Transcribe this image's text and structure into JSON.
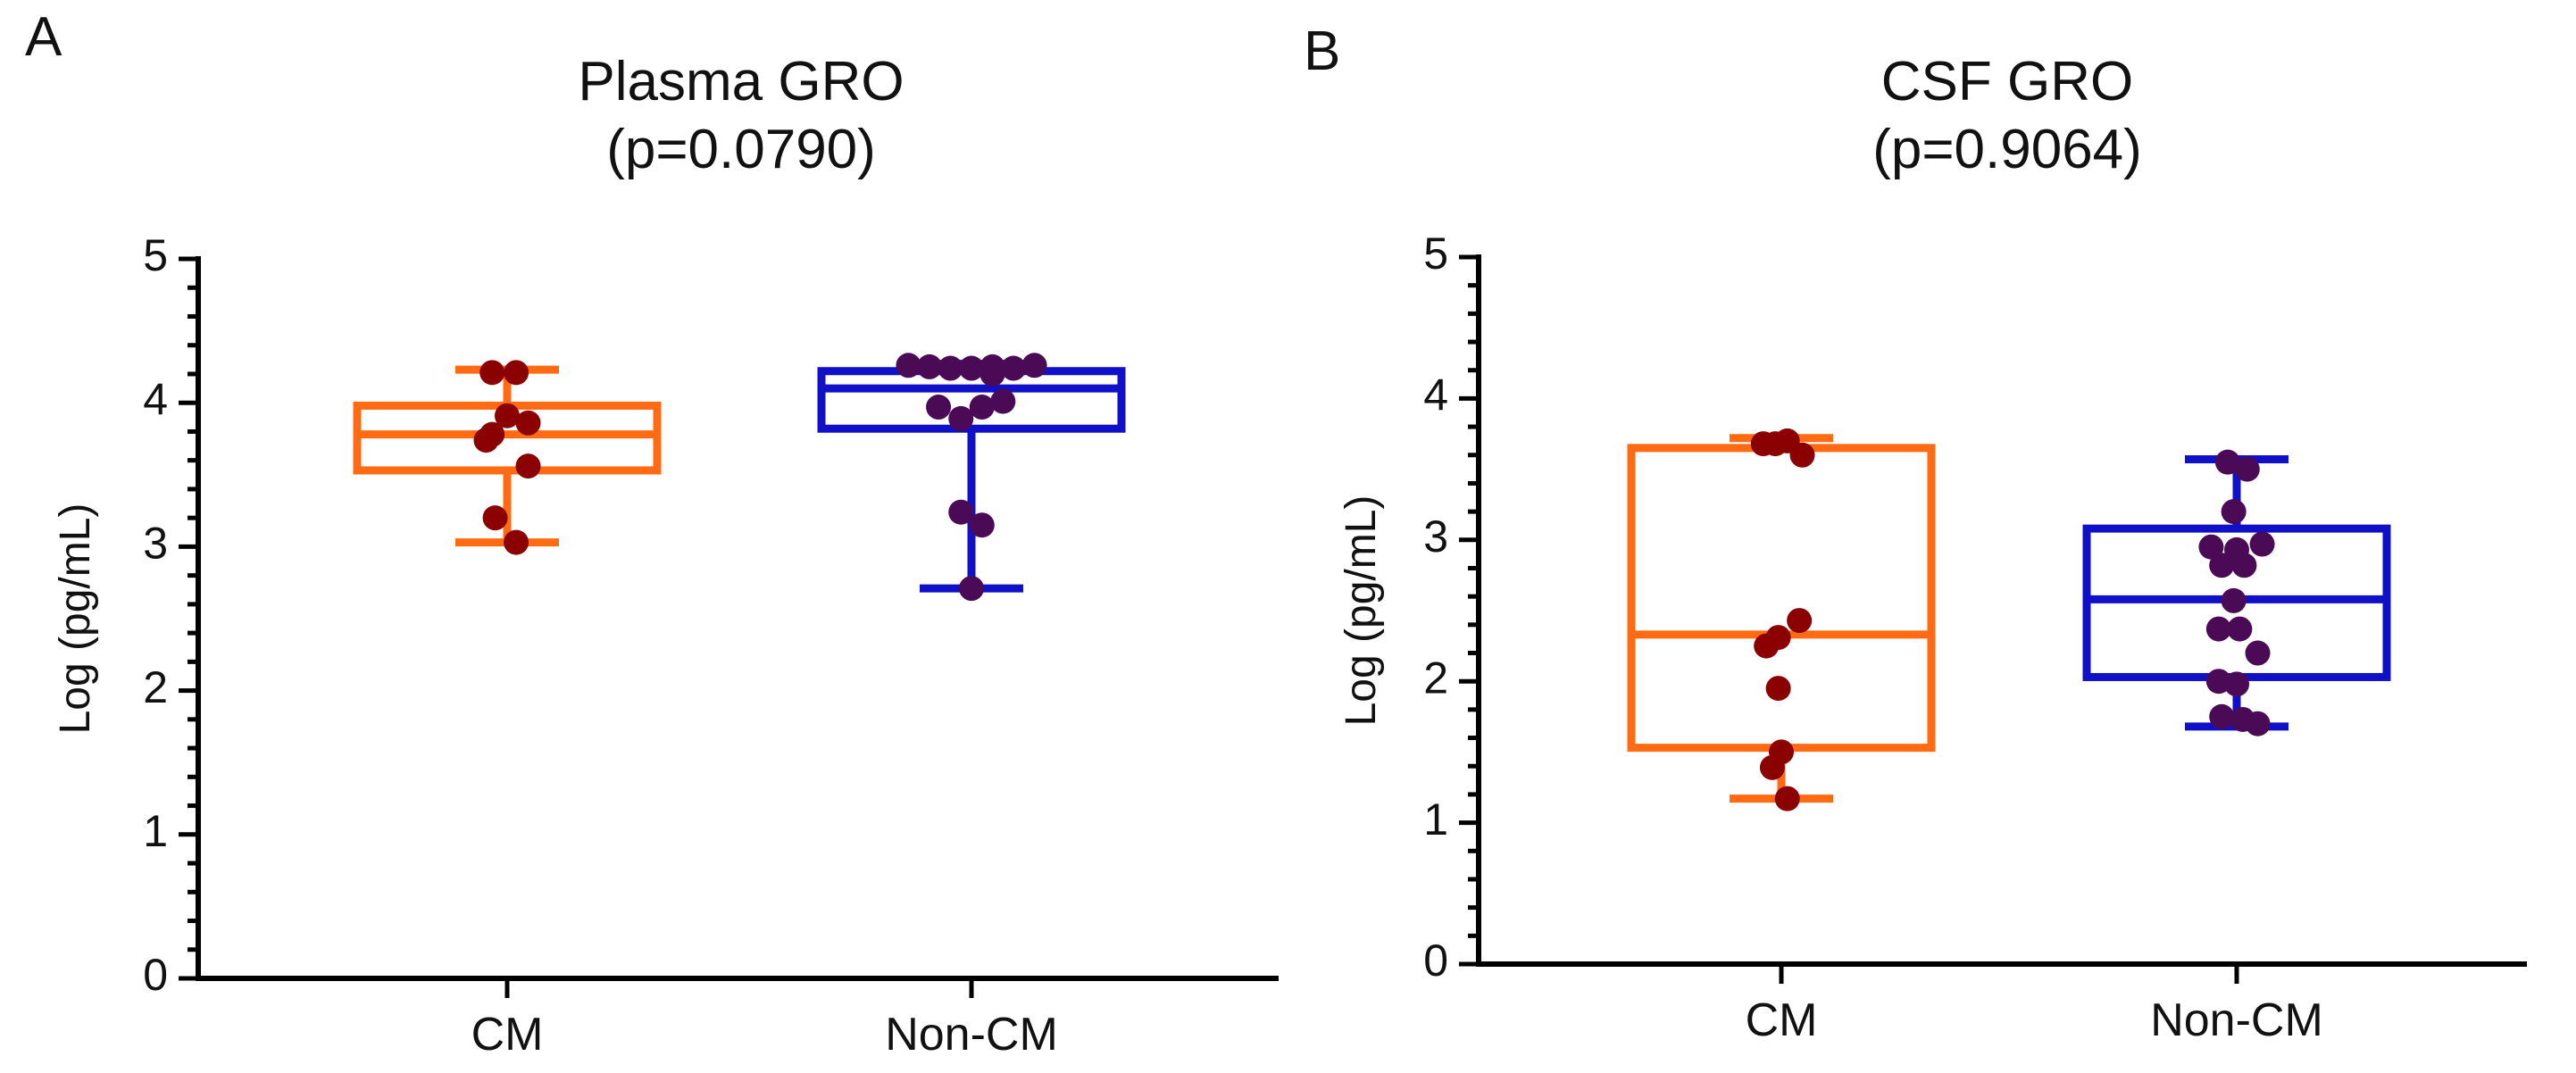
{
  "colors": {
    "CM": "#ff6a13",
    "Non-CM": "#1010c8",
    "point_CM": "#8b0000",
    "point_NonCM": "#4a0a55",
    "axis": "#000000"
  },
  "chart_data": [
    {
      "panel": "A",
      "type": "box",
      "title": "Plasma GRO",
      "subtitle": "(p=0.0790)",
      "ylabel": "Log (pg/mL)",
      "xlabel": "",
      "ylim": [
        0,
        5
      ],
      "yticks": [
        0,
        1,
        2,
        3,
        4,
        5
      ],
      "categories": [
        "CM",
        "Non-CM"
      ],
      "series": [
        {
          "name": "CM",
          "box": {
            "min": 3.03,
            "q1": 3.53,
            "median": 3.78,
            "q3": 3.98,
            "max": 4.23
          },
          "points": [
            {
              "dx": -0.1,
              "y": 4.21
            },
            {
              "dx": 0.06,
              "y": 4.21
            },
            {
              "dx": 0.0,
              "y": 3.91
            },
            {
              "dx": 0.14,
              "y": 3.86
            },
            {
              "dx": -0.1,
              "y": 3.78
            },
            {
              "dx": -0.14,
              "y": 3.74
            },
            {
              "dx": 0.14,
              "y": 3.56
            },
            {
              "dx": -0.08,
              "y": 3.2
            },
            {
              "dx": 0.06,
              "y": 3.03
            }
          ]
        },
        {
          "name": "Non-CM",
          "box": {
            "min": 2.71,
            "q1": 3.82,
            "median": 4.1,
            "q3": 4.22,
            "max": 4.27
          },
          "points": [
            {
              "dx": -0.42,
              "y": 4.26
            },
            {
              "dx": -0.28,
              "y": 4.25
            },
            {
              "dx": -0.14,
              "y": 4.24
            },
            {
              "dx": 0.0,
              "y": 4.24
            },
            {
              "dx": 0.14,
              "y": 4.25
            },
            {
              "dx": 0.28,
              "y": 4.24
            },
            {
              "dx": 0.42,
              "y": 4.26
            },
            {
              "dx": 0.14,
              "y": 4.2
            },
            {
              "dx": -0.22,
              "y": 3.97
            },
            {
              "dx": 0.07,
              "y": 3.97
            },
            {
              "dx": 0.21,
              "y": 4.01
            },
            {
              "dx": -0.07,
              "y": 3.89
            },
            {
              "dx": -0.07,
              "y": 3.24
            },
            {
              "dx": 0.07,
              "y": 3.15
            },
            {
              "dx": 0.0,
              "y": 2.71
            }
          ]
        }
      ]
    },
    {
      "panel": "B",
      "type": "box",
      "title": "CSF GRO",
      "subtitle": "(p=0.9064)",
      "ylabel": "Log (pg/mL)",
      "xlabel": "",
      "ylim": [
        0,
        5
      ],
      "yticks": [
        0,
        1,
        2,
        3,
        4,
        5
      ],
      "categories": [
        "CM",
        "Non-CM"
      ],
      "series": [
        {
          "name": "CM",
          "box": {
            "min": 1.17,
            "q1": 1.53,
            "median": 2.33,
            "q3": 3.65,
            "max": 3.72
          },
          "points": [
            {
              "dx": -0.12,
              "y": 3.68
            },
            {
              "dx": -0.04,
              "y": 3.68
            },
            {
              "dx": 0.04,
              "y": 3.7
            },
            {
              "dx": 0.14,
              "y": 3.6
            },
            {
              "dx": 0.12,
              "y": 2.43
            },
            {
              "dx": -0.02,
              "y": 2.31
            },
            {
              "dx": -0.1,
              "y": 2.25
            },
            {
              "dx": -0.02,
              "y": 1.95
            },
            {
              "dx": 0.0,
              "y": 1.5
            },
            {
              "dx": -0.06,
              "y": 1.39
            },
            {
              "dx": 0.04,
              "y": 1.17
            }
          ]
        },
        {
          "name": "Non-CM",
          "box": {
            "min": 1.68,
            "q1": 2.03,
            "median": 2.58,
            "q3": 3.08,
            "max": 3.57
          },
          "points": [
            {
              "dx": -0.06,
              "y": 3.55
            },
            {
              "dx": 0.07,
              "y": 3.5
            },
            {
              "dx": -0.02,
              "y": 3.2
            },
            {
              "dx": -0.17,
              "y": 2.95
            },
            {
              "dx": 0.0,
              "y": 2.93
            },
            {
              "dx": 0.17,
              "y": 2.97
            },
            {
              "dx": -0.1,
              "y": 2.82
            },
            {
              "dx": 0.05,
              "y": 2.82
            },
            {
              "dx": -0.02,
              "y": 2.57
            },
            {
              "dx": -0.12,
              "y": 2.37
            },
            {
              "dx": 0.02,
              "y": 2.37
            },
            {
              "dx": 0.14,
              "y": 2.2
            },
            {
              "dx": -0.12,
              "y": 2.0
            },
            {
              "dx": 0.0,
              "y": 1.98
            },
            {
              "dx": -0.1,
              "y": 1.75
            },
            {
              "dx": 0.04,
              "y": 1.73
            },
            {
              "dx": 0.14,
              "y": 1.7
            }
          ]
        }
      ]
    }
  ]
}
